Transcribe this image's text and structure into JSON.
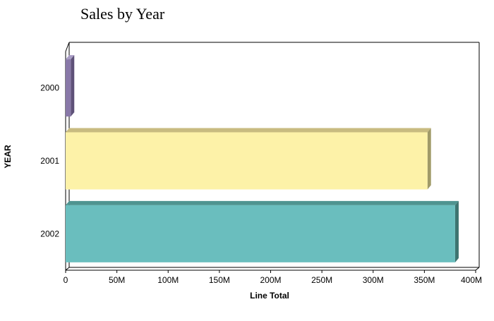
{
  "chart_data": {
    "type": "bar",
    "orientation": "horizontal",
    "title": "Sales by Year",
    "xlabel": "Line Total",
    "ylabel": "YEAR",
    "categories": [
      "2000",
      "2001",
      "2002"
    ],
    "values": [
      5000000,
      353000000,
      380000000
    ],
    "xlim": [
      0,
      400000000
    ],
    "x_ticks": [
      "0",
      "50M",
      "100M",
      "150M",
      "200M",
      "250M",
      "300M",
      "350M",
      "400M"
    ],
    "x_tick_values": [
      0,
      50000000,
      100000000,
      150000000,
      200000000,
      250000000,
      300000000,
      350000000,
      400000000
    ],
    "grid": false,
    "legend": "none",
    "style": "3d",
    "colors": [
      {
        "front": "#8878a8",
        "top": "#a89cc4",
        "side": "#5e5178"
      },
      {
        "front": "#fdf2a8",
        "top": "#c8bb80",
        "side": "#a09a68"
      },
      {
        "front": "#6abebe",
        "top": "#4f9490",
        "side": "#3e7470"
      }
    ]
  }
}
